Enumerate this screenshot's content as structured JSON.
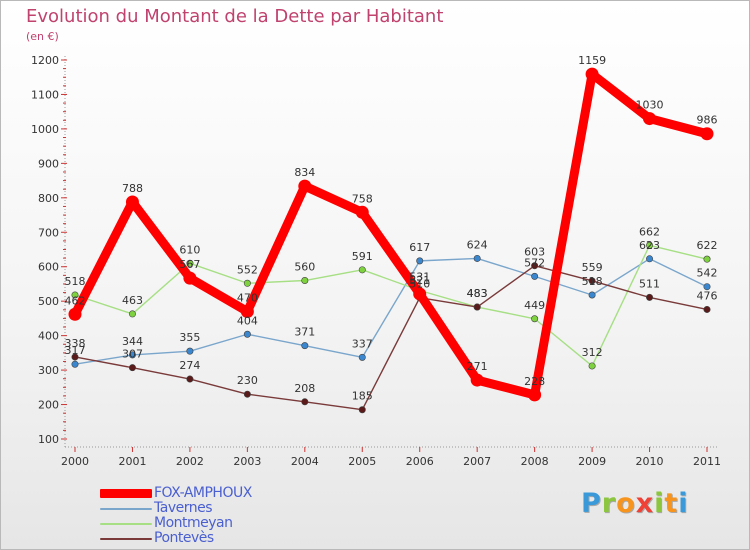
{
  "header": {
    "title": "Evolution du Montant de la Dette par Habitant",
    "unit": "(en €)"
  },
  "brand": {
    "letters": [
      "P",
      "r",
      "o",
      "x",
      "i",
      "t",
      "i"
    ],
    "colors": [
      "#3a9ad9",
      "#8cc63f",
      "#f7941d",
      "#ef4136",
      "#8cc63f",
      "#f7941d",
      "#3a9ad9"
    ]
  },
  "chart_data": {
    "type": "line",
    "x": [
      2000,
      2001,
      2002,
      2003,
      2004,
      2005,
      2006,
      2007,
      2008,
      2009,
      2010,
      2011
    ],
    "ylim": [
      100,
      1200
    ],
    "yticks": [
      100,
      200,
      300,
      400,
      500,
      600,
      700,
      800,
      900,
      1000,
      1100,
      1200
    ],
    "grid": false,
    "legend_position": "bottom-left",
    "series": [
      {
        "name": "FOX-AMPHOUX",
        "color": "#ff0000",
        "marker": "#ff0000",
        "values": [
          462,
          788,
          567,
          470,
          834,
          758,
          521,
          271,
          228,
          1159,
          1030,
          986
        ]
      },
      {
        "name": "Tavernes",
        "color": "#7aa6cc",
        "marker": "#3a86cf",
        "values": [
          317,
          344,
          355,
          404,
          371,
          337,
          617,
          624,
          572,
          518,
          623,
          542
        ]
      },
      {
        "name": "Montmeyan",
        "color": "#a6df84",
        "marker": "#7ed23f",
        "values": [
          518,
          463,
          610,
          552,
          560,
          591,
          531,
          483,
          449,
          312,
          662,
          622
        ]
      },
      {
        "name": "Pontevès",
        "color": "#7a3a3a",
        "marker": "#5a1a1a",
        "values": [
          338,
          307,
          274,
          230,
          208,
          185,
          510,
          483,
          603,
          559,
          511,
          476
        ]
      }
    ]
  }
}
